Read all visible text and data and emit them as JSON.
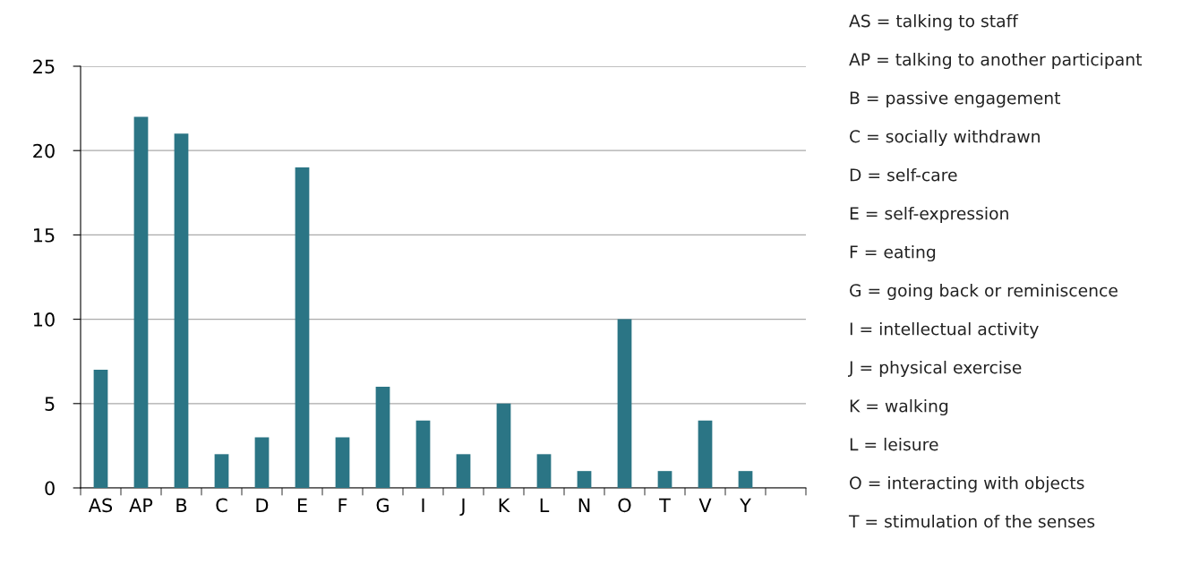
{
  "chart_data": {
    "type": "bar",
    "categories": [
      "AS",
      "AP",
      "B",
      "C",
      "D",
      "E",
      "F",
      "G",
      "I",
      "J",
      "K",
      "L",
      "N",
      "O",
      "T",
      "V",
      "Y",
      null
    ],
    "values": [
      7,
      22,
      21,
      2,
      3,
      19,
      3,
      6,
      4,
      2,
      5,
      2,
      1,
      10,
      1,
      4,
      1,
      null
    ],
    "color": "#2b7585",
    "ylim": [
      0,
      25
    ],
    "yticks": [
      0,
      5,
      10,
      15,
      20,
      25
    ],
    "grid": "y",
    "annotations": [
      "AS = talking to staff",
      "AP = talking to another participant",
      "B = passive engagement",
      "C = socially withdrawn",
      "D = self-care",
      "E = self-expression",
      "F = eating",
      "G = going back or reminiscence",
      "I = intellectual activity",
      "J = physical exercise",
      "K = walking",
      "L = leisure",
      "O = interacting with objects",
      "T = stimulation of the senses"
    ]
  }
}
